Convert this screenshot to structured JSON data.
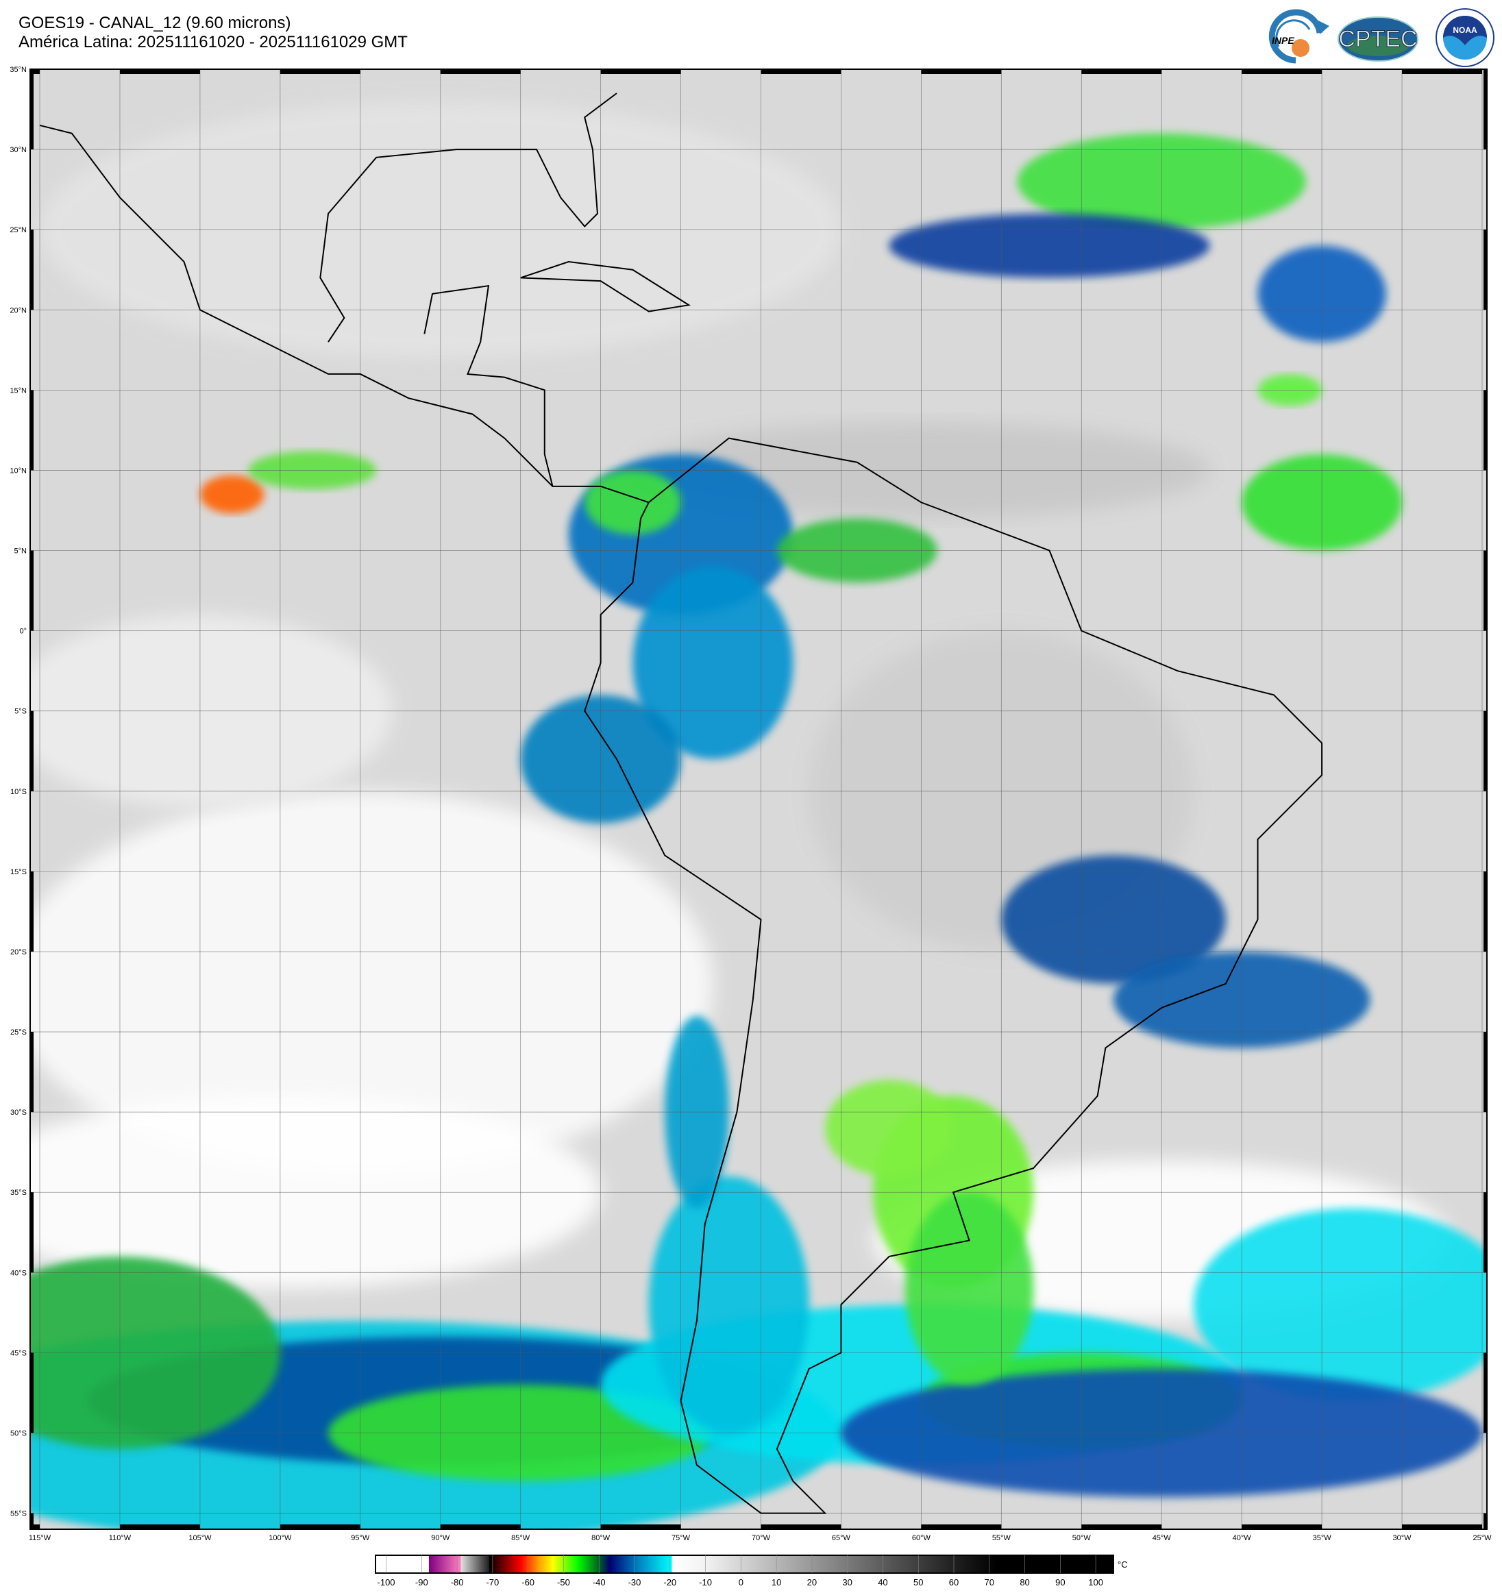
{
  "header": {
    "title": "GOES19 - CANAL_12 (9.60 microns)",
    "subtitle": "América Latina: 202511161020 - 202511161029 GMT"
  },
  "logos": [
    {
      "name": "INPE",
      "text": "INPE"
    },
    {
      "name": "CPTEC",
      "text": "CPTEC"
    },
    {
      "name": "NOAA",
      "text": "NOAA"
    }
  ],
  "map": {
    "projection": "equirectangular",
    "lon_range": [
      -115.6,
      -24.7
    ],
    "lat_range": [
      -56,
      35
    ],
    "grid": true,
    "lat_labels": [
      "35°N",
      "30°N",
      "25°N",
      "20°N",
      "15°N",
      "10°N",
      "5°N",
      "0°",
      "5°S",
      "10°S",
      "15°S",
      "20°S",
      "25°S",
      "30°S",
      "35°S",
      "40°S",
      "45°S",
      "50°S",
      "55°S"
    ],
    "lat_values": [
      35,
      30,
      25,
      20,
      15,
      10,
      5,
      0,
      -5,
      -10,
      -15,
      -20,
      -25,
      -30,
      -35,
      -40,
      -45,
      -50,
      -55
    ],
    "lon_labels": [
      "115°W",
      "110°W",
      "105°W",
      "100°W",
      "95°W",
      "90°W",
      "85°W",
      "80°W",
      "75°W",
      "70°W",
      "65°W",
      "60°W",
      "55°W",
      "50°W",
      "45°W",
      "40°W",
      "35°W",
      "30°W",
      "25°W"
    ],
    "lon_values": [
      -115,
      -110,
      -105,
      -100,
      -95,
      -90,
      -85,
      -80,
      -75,
      -70,
      -65,
      -60,
      -55,
      -50,
      -45,
      -40,
      -35,
      -30,
      -25
    ]
  },
  "colorbar": {
    "unit": "°C",
    "range": [
      -103,
      105
    ],
    "ticks": [
      "-100",
      "-90",
      "-80",
      "-70",
      "-60",
      "-50",
      "-40",
      "-30",
      "-20",
      "-10",
      "0",
      "10",
      "20",
      "30",
      "40",
      "50",
      "60",
      "70",
      "80",
      "90",
      "100"
    ],
    "tick_values": [
      -100,
      -90,
      -80,
      -70,
      -60,
      -50,
      -40,
      -30,
      -20,
      -10,
      0,
      10,
      20,
      30,
      40,
      50,
      60,
      70,
      80,
      90,
      100
    ],
    "stops": [
      {
        "v": -103,
        "c": "#ffffff"
      },
      {
        "v": -88,
        "c": "#ffffff"
      },
      {
        "v": -87.9,
        "c": "#800080"
      },
      {
        "v": -79,
        "c": "#ff80c0"
      },
      {
        "v": -78.9,
        "c": "#e0e0e0"
      },
      {
        "v": -71,
        "c": "#202020"
      },
      {
        "v": -70.9,
        "c": "#000000"
      },
      {
        "v": -62,
        "c": "#ff0000"
      },
      {
        "v": -57,
        "c": "#ffa000"
      },
      {
        "v": -53,
        "c": "#ffff00"
      },
      {
        "v": -46,
        "c": "#00ff00"
      },
      {
        "v": -40,
        "c": "#006020"
      },
      {
        "v": -37,
        "c": "#000070"
      },
      {
        "v": -29,
        "c": "#0080c0"
      },
      {
        "v": -19.5,
        "c": "#00ffff"
      },
      {
        "v": -19.4,
        "c": "#ffffff"
      },
      {
        "v": -10,
        "c": "#f2f2f2"
      },
      {
        "v": 60,
        "c": "#202020"
      },
      {
        "v": 72,
        "c": "#000000"
      },
      {
        "v": 105,
        "c": "#000000"
      }
    ]
  }
}
